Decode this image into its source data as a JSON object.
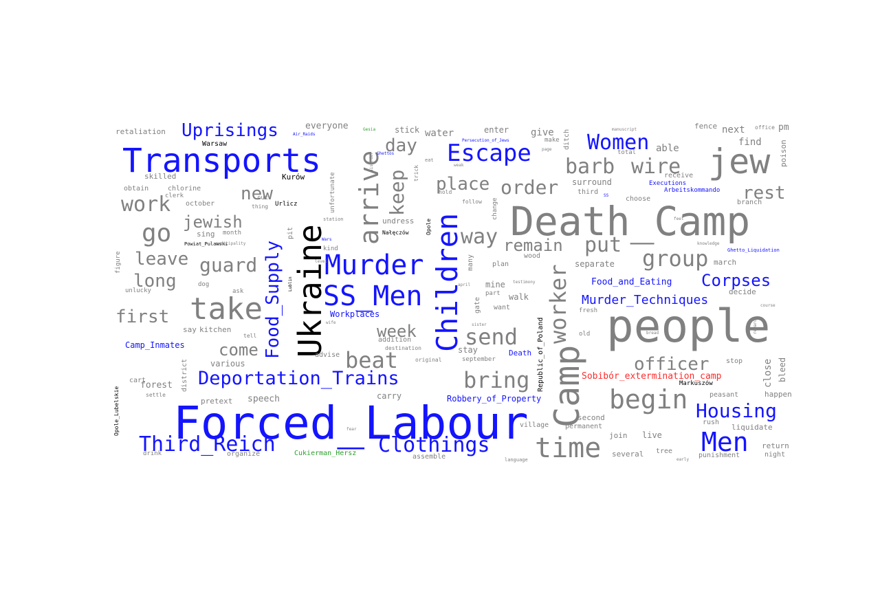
{
  "colors": {
    "topic": "#1414ff",
    "common": "#808080",
    "place": "#000000",
    "person": "#2e9e2e",
    "camp": "#ff2a2a"
  },
  "words": [
    {
      "text": "Forced_Labour",
      "cls": "topic"
    },
    {
      "text": "Death_Camp",
      "cls": "common"
    },
    {
      "text": "people",
      "cls": "common"
    },
    {
      "text": "Transports",
      "cls": "topic"
    },
    {
      "text": "jew",
      "cls": "common"
    },
    {
      "text": "Ukraine",
      "cls": "place"
    },
    {
      "text": "Camp",
      "cls": "common"
    },
    {
      "text": "Children",
      "cls": "topic"
    },
    {
      "text": "arrive",
      "cls": "common"
    },
    {
      "text": "Murder",
      "cls": "topic"
    },
    {
      "text": "SS_Men",
      "cls": "topic"
    },
    {
      "text": "take",
      "cls": "common"
    },
    {
      "text": "time",
      "cls": "common"
    },
    {
      "text": "begin",
      "cls": "common"
    },
    {
      "text": "Men",
      "cls": "topic"
    },
    {
      "text": "Escape",
      "cls": "topic"
    },
    {
      "text": "Deportation_Trains",
      "cls": "topic"
    },
    {
      "text": "Clothings",
      "cls": "topic"
    },
    {
      "text": "Third_Reich",
      "cls": "topic"
    },
    {
      "text": "Women",
      "cls": "topic"
    },
    {
      "text": "Uprisings",
      "cls": "topic"
    },
    {
      "text": "barb",
      "cls": "common"
    },
    {
      "text": "wire",
      "cls": "common"
    },
    {
      "text": "worker",
      "cls": "common"
    },
    {
      "text": "group",
      "cls": "common"
    },
    {
      "text": "bring",
      "cls": "common"
    },
    {
      "text": "send",
      "cls": "common"
    },
    {
      "text": "go",
      "cls": "common"
    },
    {
      "text": "work",
      "cls": "common"
    },
    {
      "text": "Food_Supply",
      "cls": "topic"
    },
    {
      "text": "beat",
      "cls": "common"
    },
    {
      "text": "order",
      "cls": "common"
    },
    {
      "text": "day",
      "cls": "common"
    },
    {
      "text": "place",
      "cls": "common"
    },
    {
      "text": "put",
      "cls": "common"
    },
    {
      "text": "way",
      "cls": "common"
    },
    {
      "text": "keep",
      "cls": "common"
    },
    {
      "text": "rest",
      "cls": "common"
    },
    {
      "text": "officer",
      "cls": "common"
    },
    {
      "text": "Housing",
      "cls": "topic"
    },
    {
      "text": "Corpses",
      "cls": "topic"
    },
    {
      "text": "guard",
      "cls": "common"
    },
    {
      "text": "first",
      "cls": "common"
    },
    {
      "text": "long",
      "cls": "common"
    },
    {
      "text": "leave",
      "cls": "common"
    },
    {
      "text": "jewish",
      "cls": "common"
    },
    {
      "text": "new",
      "cls": "common"
    },
    {
      "text": "come",
      "cls": "common"
    },
    {
      "text": "week",
      "cls": "common"
    },
    {
      "text": "remain",
      "cls": "common"
    },
    {
      "text": "Murder_Techniques",
      "cls": "topic"
    },
    {
      "text": "Sobibór_extermination_camp",
      "cls": "camp"
    },
    {
      "text": "Food_and_Eating",
      "cls": "topic"
    },
    {
      "text": "Robbery_of_Property",
      "cls": "topic"
    },
    {
      "text": "Camp_Inmates",
      "cls": "topic"
    },
    {
      "text": "Workplaces",
      "cls": "topic"
    },
    {
      "text": "Death",
      "cls": "topic"
    },
    {
      "text": "Arbeitskommando",
      "cls": "topic"
    },
    {
      "text": "Executions",
      "cls": "topic"
    },
    {
      "text": "Ghetto_Liquidation",
      "cls": "topic"
    },
    {
      "text": "Cukierman_Hersz",
      "cls": "person"
    },
    {
      "text": "Republic_of_Poland",
      "cls": "place"
    },
    {
      "text": "Warsaw",
      "cls": "place"
    },
    {
      "text": "Kurów",
      "cls": "place"
    },
    {
      "text": "Urlicz",
      "cls": "place"
    },
    {
      "text": "Nałęczów",
      "cls": "place"
    },
    {
      "text": "Markuszów",
      "cls": "place"
    },
    {
      "text": "Powiat_Pulawski",
      "cls": "place"
    },
    {
      "text": "Opole_Lubelskie",
      "cls": "place"
    },
    {
      "text": "Opole",
      "cls": "place"
    },
    {
      "text": "Lublin",
      "cls": "place"
    },
    {
      "text": "Persecution_of_Jews",
      "cls": "topic"
    },
    {
      "text": "Air_Raids",
      "cls": "topic"
    },
    {
      "text": "Ghettos",
      "cls": "topic"
    },
    {
      "text": "Gesia",
      "cls": "person"
    },
    {
      "text": "SS",
      "cls": "topic"
    },
    {
      "text": "Wars",
      "cls": "topic"
    },
    {
      "text": "retaliation",
      "cls": "common"
    },
    {
      "text": "everyone",
      "cls": "common"
    },
    {
      "text": "stick",
      "cls": "common"
    },
    {
      "text": "water",
      "cls": "common"
    },
    {
      "text": "enter",
      "cls": "common"
    },
    {
      "text": "give",
      "cls": "common"
    },
    {
      "text": "fence",
      "cls": "common"
    },
    {
      "text": "next",
      "cls": "common"
    },
    {
      "text": "office",
      "cls": "common"
    },
    {
      "text": "pm",
      "cls": "common"
    },
    {
      "text": "find",
      "cls": "common"
    },
    {
      "text": "able",
      "cls": "common"
    },
    {
      "text": "total",
      "cls": "common"
    },
    {
      "text": "poison",
      "cls": "common"
    },
    {
      "text": "skilled",
      "cls": "common"
    },
    {
      "text": "obtain",
      "cls": "common"
    },
    {
      "text": "chlorine",
      "cls": "common"
    },
    {
      "text": "clerk",
      "cls": "common"
    },
    {
      "text": "october",
      "cls": "common"
    },
    {
      "text": "thing",
      "cls": "common"
    },
    {
      "text": "sing",
      "cls": "common"
    },
    {
      "text": "month",
      "cls": "common"
    },
    {
      "text": "cut",
      "cls": "common"
    },
    {
      "text": "receive",
      "cls": "common"
    },
    {
      "text": "surround",
      "cls": "common"
    },
    {
      "text": "third",
      "cls": "common"
    },
    {
      "text": "choose",
      "cls": "common"
    },
    {
      "text": "branch",
      "cls": "common"
    },
    {
      "text": "hold",
      "cls": "common"
    },
    {
      "text": "follow",
      "cls": "common"
    },
    {
      "text": "change",
      "cls": "common"
    },
    {
      "text": "plan",
      "cls": "common"
    },
    {
      "text": "wood",
      "cls": "common"
    },
    {
      "text": "separate",
      "cls": "common"
    },
    {
      "text": "march",
      "cls": "common"
    },
    {
      "text": "figure",
      "cls": "common"
    },
    {
      "text": "dog",
      "cls": "common"
    },
    {
      "text": "ask",
      "cls": "common"
    },
    {
      "text": "unlucky",
      "cls": "common"
    },
    {
      "text": "mine",
      "cls": "common"
    },
    {
      "text": "part",
      "cls": "common"
    },
    {
      "text": "walk",
      "cls": "common"
    },
    {
      "text": "want",
      "cls": "common"
    },
    {
      "text": "decide",
      "cls": "common"
    },
    {
      "text": "fresh",
      "cls": "common"
    },
    {
      "text": "old",
      "cls": "common"
    },
    {
      "text": "say",
      "cls": "common"
    },
    {
      "text": "kitchen",
      "cls": "common"
    },
    {
      "text": "tell",
      "cls": "common"
    },
    {
      "text": "addition",
      "cls": "common"
    },
    {
      "text": "stay",
      "cls": "common"
    },
    {
      "text": "september",
      "cls": "common"
    },
    {
      "text": "various",
      "cls": "common"
    },
    {
      "text": "advise",
      "cls": "common"
    },
    {
      "text": "destination",
      "cls": "common"
    },
    {
      "text": "original",
      "cls": "common"
    },
    {
      "text": "stop",
      "cls": "common"
    },
    {
      "text": "close",
      "cls": "common"
    },
    {
      "text": "bleed",
      "cls": "common"
    },
    {
      "text": "happen",
      "cls": "common"
    },
    {
      "text": "peasant",
      "cls": "common"
    },
    {
      "text": "cart",
      "cls": "common"
    },
    {
      "text": "forest",
      "cls": "common"
    },
    {
      "text": "settle",
      "cls": "common"
    },
    {
      "text": "district",
      "cls": "common"
    },
    {
      "text": "pretext",
      "cls": "common"
    },
    {
      "text": "speech",
      "cls": "common"
    },
    {
      "text": "carry",
      "cls": "common"
    },
    {
      "text": "second",
      "cls": "common"
    },
    {
      "text": "permanent",
      "cls": "common"
    },
    {
      "text": "village",
      "cls": "common"
    },
    {
      "text": "join",
      "cls": "common"
    },
    {
      "text": "live",
      "cls": "common"
    },
    {
      "text": "rush",
      "cls": "common"
    },
    {
      "text": "liquidate",
      "cls": "common"
    },
    {
      "text": "return",
      "cls": "common"
    },
    {
      "text": "night",
      "cls": "common"
    },
    {
      "text": "several",
      "cls": "common"
    },
    {
      "text": "tree",
      "cls": "common"
    },
    {
      "text": "punishment",
      "cls": "common"
    },
    {
      "text": "drink",
      "cls": "common"
    },
    {
      "text": "organize",
      "cls": "common"
    },
    {
      "text": "assemble",
      "cls": "common"
    },
    {
      "text": "language",
      "cls": "common"
    },
    {
      "text": "early",
      "cls": "common"
    },
    {
      "text": "unfortunate",
      "cls": "common"
    },
    {
      "text": "undress",
      "cls": "common"
    },
    {
      "text": "station",
      "cls": "common"
    },
    {
      "text": "kind",
      "cls": "common"
    },
    {
      "text": "many",
      "cls": "common"
    },
    {
      "text": "gate",
      "cls": "common"
    },
    {
      "text": "testimony",
      "cls": "common"
    },
    {
      "text": "ditch",
      "cls": "common"
    },
    {
      "text": "make",
      "cls": "common"
    },
    {
      "text": "page",
      "cls": "common"
    },
    {
      "text": "manuscript",
      "cls": "common"
    },
    {
      "text": "wife",
      "cls": "common"
    },
    {
      "text": "bread",
      "cls": "common"
    },
    {
      "text": "course",
      "cls": "common"
    },
    {
      "text": "reward",
      "cls": "common"
    },
    {
      "text": "fear",
      "cls": "common"
    },
    {
      "text": "trick",
      "cls": "common"
    },
    {
      "text": "disorder",
      "cls": "common"
    },
    {
      "text": "eat",
      "cls": "common"
    },
    {
      "text": "weak",
      "cls": "common"
    },
    {
      "text": "pit",
      "cls": "common"
    },
    {
      "text": "municipality",
      "cls": "common"
    },
    {
      "text": "level",
      "cls": "common"
    },
    {
      "text": "april",
      "cls": "common"
    },
    {
      "text": "sister",
      "cls": "common"
    },
    {
      "text": "feel",
      "cls": "common"
    },
    {
      "text": "knowledge",
      "cls": "common"
    }
  ]
}
